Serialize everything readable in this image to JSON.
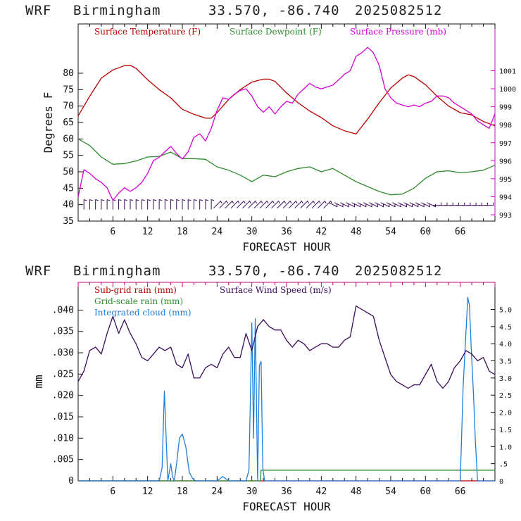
{
  "panels": [
    {
      "title": {
        "model": "WRF",
        "station": "Birmingham",
        "coords": "33.570, -86.740",
        "run": "2025082512"
      },
      "chart_data": {
        "type": "line",
        "xlabel": "FORECAST HOUR",
        "ylabel": "Degrees F",
        "xlim": [
          0,
          72
        ],
        "ylim": [
          35,
          95
        ],
        "right_ylim": [
          992.65,
          1003.6
        ],
        "x_ticks": [
          6,
          12,
          18,
          24,
          30,
          36,
          42,
          48,
          54,
          60,
          66
        ],
        "x_tick_labels": [
          "6",
          "12",
          "18",
          "24",
          "30",
          "36",
          "42",
          "48",
          "54",
          "60",
          "66"
        ],
        "y_ticks": [
          35,
          40,
          45,
          50,
          55,
          60,
          65,
          70,
          75,
          80
        ],
        "y_tick_labels": [
          "35",
          "40",
          "45",
          "50",
          "55",
          "60",
          "65",
          "70",
          "75",
          "80"
        ],
        "right_ticks": [
          993,
          994,
          995,
          996,
          997,
          998,
          999,
          1000,
          1001
        ],
        "right_tick_labels": [
          "993",
          "994",
          "995",
          "996",
          "997",
          "998",
          "999",
          "1000",
          "1001"
        ],
        "series": [
          {
            "name": "Surface Temperature (F)",
            "axis": "left",
            "color": "#b80000",
            "x": [
              0,
              2,
              4,
              6,
              8,
              9,
              10,
              12,
              14,
              16,
              18,
              20,
              22,
              23,
              24,
              26,
              28,
              30,
              32,
              33,
              34,
              36,
              38,
              40,
              42,
              44,
              46,
              48,
              50,
              52,
              54,
              56,
              57,
              58,
              60,
              62,
              64,
              66,
              68,
              70,
              72
            ],
            "y": [
              67,
              73,
              78.5,
              81,
              82.3,
              82.4,
              81.5,
              78,
              75,
              72.5,
              69,
              67.5,
              66.3,
              66.3,
              68,
              72,
              75,
              77.3,
              78.2,
              78.2,
              77.5,
              74,
              71,
              68.5,
              66.5,
              64,
              62.5,
              61.5,
              66,
              71,
              75.5,
              78.5,
              79.5,
              79,
              76.5,
              73,
              70,
              68,
              67.3,
              65.3,
              64
            ]
          },
          {
            "name": "Surface Dewpoint (F)",
            "axis": "left",
            "color": "#2e8b2e",
            "x": [
              0,
              2,
              4,
              6,
              8,
              10,
              12,
              14,
              16,
              18,
              20,
              22,
              24,
              26,
              28,
              30,
              32,
              34,
              36,
              38,
              40,
              42,
              44,
              46,
              48,
              50,
              52,
              54,
              56,
              58,
              60,
              62,
              64,
              66,
              68,
              70,
              72
            ],
            "y": [
              60,
              58,
              54.5,
              52.3,
              52.5,
              53.3,
              54.5,
              54.7,
              56,
              54,
              54,
              53.8,
              51.5,
              50.5,
              49,
              47,
              49,
              48.5,
              50,
              51,
              51.5,
              50,
              51,
              49,
              47,
              45.5,
              44,
              43,
              43.2,
              45,
              48,
              50,
              50.3,
              49.7,
              50,
              50.5,
              52
            ]
          },
          {
            "name": "Surface Pressure (mb)",
            "axis": "right",
            "color": "#d400d4",
            "x": [
              0,
              1,
              2,
              3,
              4,
              5,
              6,
              7,
              8,
              9,
              10,
              11,
              12,
              13,
              14,
              15,
              16,
              17,
              18,
              19,
              20,
              21,
              22,
              23,
              24,
              25,
              26,
              27,
              28,
              29,
              30,
              31,
              32,
              33,
              34,
              35,
              36,
              37,
              38,
              39,
              40,
              41,
              42,
              43,
              44,
              45,
              46,
              47,
              48,
              49,
              50,
              51,
              52,
              53,
              54,
              55,
              56,
              57,
              58,
              59,
              60,
              61,
              62,
              63,
              64,
              65,
              66,
              67,
              68,
              69,
              70,
              71,
              72
            ],
            "y": [
              994,
              995.5,
              995.3,
              995,
              994.8,
              994.5,
              993.8,
              994.2,
              994.5,
              994.3,
              994.5,
              994.8,
              995.3,
              996,
              996.2,
              996.5,
              996.8,
              996.4,
              996.1,
              996.5,
              997.3,
              997.5,
              997.1,
              997.8,
              998.8,
              999.5,
              999.4,
              999.7,
              999.9,
              1000.0,
              999.6,
              999.0,
              998.7,
              999.0,
              998.6,
              999.0,
              999.3,
              999.2,
              999.7,
              1000.0,
              1000.3,
              1000.1,
              1000.0,
              1000.1,
              1000.2,
              1000.5,
              1000.8,
              1001.0,
              1001.8,
              1002.0,
              1002.3,
              1002.0,
              1001.3,
              1000.0,
              999.5,
              999.2,
              999.1,
              999.0,
              999.1,
              999.0,
              999.2,
              999.3,
              999.6,
              999.6,
              999.5,
              999.2,
              999.0,
              998.8,
              998.6,
              998.2,
              998.0,
              997.8,
              998.6
            ]
          }
        ],
        "wind_barbs": {
          "x_start": 1,
          "x_end": 71,
          "step": 1,
          "y": 40,
          "color": "#3a0b5a"
        }
      }
    },
    {
      "title": {
        "model": "WRF",
        "station": "Birmingham",
        "coords": "33.570, -86.740",
        "run": "2025082512"
      },
      "chart_data": {
        "type": "line",
        "xlabel": "FORECAST HOUR",
        "ylabel": "mm",
        "xlim": [
          0,
          72
        ],
        "ylim": [
          0,
          0.0465
        ],
        "right_ylim": [
          0,
          5.79
        ],
        "x_ticks": [
          6,
          12,
          18,
          24,
          30,
          36,
          42,
          48,
          54,
          60,
          66
        ],
        "x_tick_labels": [
          "6",
          "12",
          "18",
          "24",
          "30",
          "36",
          "42",
          "48",
          "54",
          "60",
          "66"
        ],
        "y_ticks": [
          0,
          0.005,
          0.01,
          0.015,
          0.02,
          0.025,
          0.03,
          0.035,
          0.04
        ],
        "y_tick_labels": [
          "0",
          ".005",
          ".010",
          ".015",
          ".020",
          ".025",
          ".030",
          ".035",
          ".040"
        ],
        "right_ticks": [
          0,
          0.5,
          1.0,
          1.5,
          2.0,
          2.5,
          3.0,
          3.5,
          4.0,
          4.5,
          5.0
        ],
        "right_tick_labels": [
          "0",
          ".5",
          "1.0",
          "1.5",
          "2.0",
          "2.5",
          "3.0",
          "3.5",
          "4.0",
          "4.5",
          "5.0"
        ],
        "series": [
          {
            "name": "Sub-grid rain (mm)",
            "axis": "left",
            "color": "#b80000",
            "x": [
              0,
              72
            ],
            "y": [
              0,
              0
            ]
          },
          {
            "name": "Grid-scale rain (mm)",
            "axis": "left",
            "color": "#2e8b2e",
            "x": [
              0,
              31.5,
              31.6,
              72
            ],
            "y": [
              0,
              0,
              0.0025,
              0.0025
            ]
          },
          {
            "name": "Integrated cloud (mm)",
            "axis": "left",
            "color": "#1e7fd8",
            "x": [
              0,
              14,
              14.5,
              14.9,
              15.2,
              15.5,
              16,
              16.3,
              16.6,
              17,
              17.5,
              18,
              18.6,
              19.2,
              19.8,
              20.3,
              21,
              22,
              24,
              25,
              26,
              28,
              29,
              29.5,
              30,
              30.3,
              30.6,
              31,
              31.3,
              31.6,
              31.9,
              32.2,
              32.6,
              33,
              34,
              66,
              66.5,
              67,
              67.3,
              67.6,
              67.9,
              68.3,
              68.6,
              69,
              70,
              72
            ],
            "y": [
              0,
              0,
              0.003,
              0.021,
              0.01,
              0,
              0.004,
              0.001,
              0,
              0.004,
              0.01,
              0.011,
              0.008,
              0.002,
              0.0005,
              0,
              0,
              0,
              0,
              0.001,
              0,
              0,
              0,
              0.0025,
              0.037,
              0.01,
              0.038,
              0,
              0.027,
              0.028,
              0.003,
              0,
              0,
              0,
              0,
              0,
              0.022,
              0.035,
              0.043,
              0.041,
              0.031,
              0.02,
              0.01,
              0,
              0,
              0
            ]
          },
          {
            "name": "Surface Wind Speed (m/s)",
            "axis": "right",
            "color": "#3a0b5a",
            "x": [
              0,
              1,
              2,
              3,
              4,
              5,
              6,
              7,
              8,
              9,
              10,
              11,
              12,
              13,
              14,
              15,
              16,
              17,
              18,
              19,
              20,
              21,
              22,
              23,
              24,
              25,
              26,
              27,
              28,
              29,
              30,
              31,
              32,
              33,
              34,
              35,
              36,
              37,
              38,
              39,
              40,
              41,
              42,
              43,
              44,
              45,
              46,
              47,
              48,
              49,
              50,
              51,
              52,
              53,
              54,
              55,
              56,
              57,
              58,
              59,
              60,
              61,
              62,
              63,
              64,
              65,
              66,
              67,
              68,
              69,
              70,
              71,
              72
            ],
            "y": [
              2.9,
              3.2,
              3.8,
              3.9,
              3.7,
              4.3,
              4.8,
              4.3,
              4.7,
              4.3,
              4.0,
              3.6,
              3.5,
              3.7,
              3.9,
              3.8,
              3.9,
              3.4,
              3.3,
              3.7,
              3.0,
              3.0,
              3.3,
              3.4,
              3.3,
              3.7,
              3.9,
              3.6,
              3.6,
              4.3,
              3.8,
              4.5,
              4.7,
              4.5,
              4.4,
              4.4,
              4.1,
              3.9,
              4.1,
              4.0,
              3.8,
              3.9,
              4.0,
              4.0,
              3.9,
              3.9,
              4.1,
              4.2,
              5.1,
              5.0,
              4.9,
              4.8,
              4.1,
              3.6,
              3.1,
              2.9,
              2.8,
              2.7,
              2.8,
              2.8,
              3.1,
              3.4,
              2.9,
              2.7,
              2.9,
              3.3,
              3.5,
              3.8,
              3.7,
              3.5,
              3.6,
              3.2,
              3.1
            ]
          }
        ]
      }
    }
  ]
}
